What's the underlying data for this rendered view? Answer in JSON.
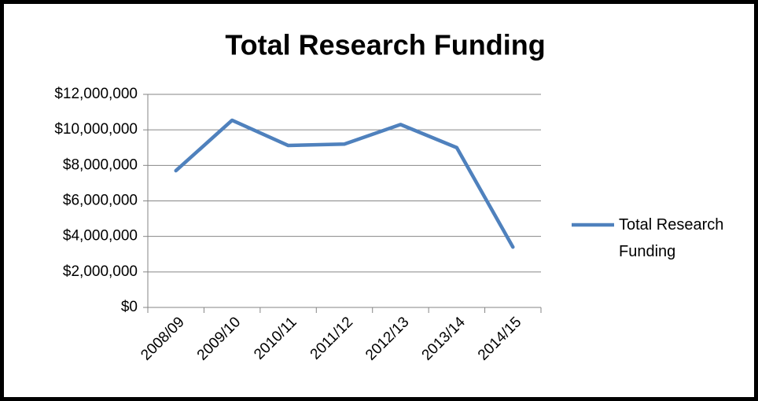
{
  "chart_data": {
    "type": "line",
    "title": "Total Research Funding",
    "categories": [
      "2008/09",
      "2009/10",
      "2010/11",
      "2011/12",
      "2012/13",
      "2013/14",
      "2014/15"
    ],
    "series": [
      {
        "name": "Total Research Funding",
        "color": "#4f81bd",
        "values": [
          7700000,
          10540000,
          9120000,
          9200000,
          10300000,
          9000000,
          3400000
        ]
      }
    ],
    "ylim": [
      0,
      12000000
    ],
    "yticks": [
      {
        "value": 0,
        "label": "$0"
      },
      {
        "value": 2000000,
        "label": "$2,000,000"
      },
      {
        "value": 4000000,
        "label": "$4,000,000"
      },
      {
        "value": 6000000,
        "label": "$6,000,000"
      },
      {
        "value": 8000000,
        "label": "$8,000,000"
      },
      {
        "value": 10000000,
        "label": "$10,000,000"
      },
      {
        "value": 12000000,
        "label": "$12,000,000"
      }
    ],
    "grid": true,
    "legend": "right"
  }
}
